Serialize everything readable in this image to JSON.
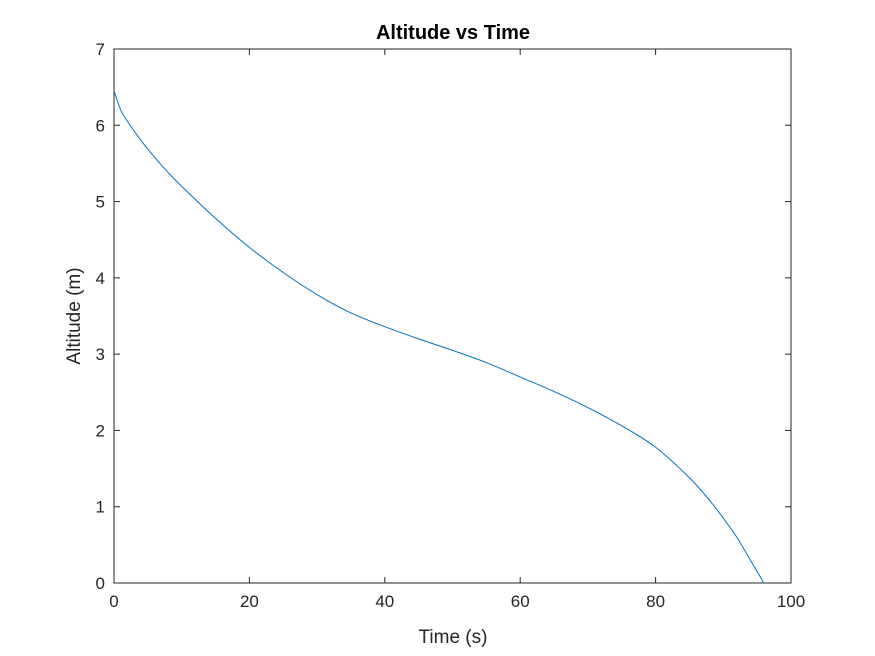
{
  "chart_data": {
    "type": "line",
    "title": "Altitude vs Time",
    "xlabel": "Time (s)",
    "ylabel": "Altitude (m)",
    "xlim": [
      0,
      100
    ],
    "ylim": [
      0,
      7
    ],
    "xticks": [
      "0",
      "20",
      "40",
      "60",
      "80",
      "100"
    ],
    "yticks": [
      "0",
      "1",
      "2",
      "3",
      "4",
      "5",
      "6",
      "7"
    ],
    "grid": false,
    "series": [
      {
        "color": "#0072BD",
        "x": [
          0,
          1,
          2,
          4,
          6,
          8,
          10,
          15,
          20,
          25,
          30,
          35,
          40,
          45,
          50,
          55,
          60,
          65,
          70,
          75,
          80,
          85,
          88,
          90,
          92,
          94,
          95,
          95.8,
          95.9
        ],
        "y": [
          6.45,
          6.2,
          6.05,
          5.8,
          5.58,
          5.38,
          5.2,
          4.78,
          4.4,
          4.07,
          3.78,
          3.54,
          3.36,
          3.2,
          3.05,
          2.89,
          2.7,
          2.51,
          2.3,
          2.06,
          1.78,
          1.38,
          1.08,
          0.85,
          0.6,
          0.3,
          0.15,
          0.03,
          0
        ]
      }
    ]
  }
}
